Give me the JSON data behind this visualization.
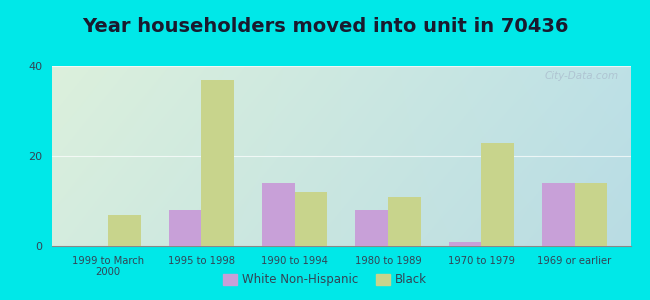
{
  "title": "Year householders moved into unit in 70436",
  "categories": [
    "1999 to March\n2000",
    "1995 to 1998",
    "1990 to 1994",
    "1980 to 1989",
    "1970 to 1979",
    "1969 or earlier"
  ],
  "white_non_hispanic": [
    0,
    8,
    14,
    8,
    1,
    14
  ],
  "black": [
    7,
    37,
    12,
    11,
    23,
    14
  ],
  "white_color": "#c8a0d8",
  "black_color": "#c8d48c",
  "background_outer": "#00e8e8",
  "ylim": [
    0,
    40
  ],
  "yticks": [
    0,
    20,
    40
  ],
  "title_fontsize": 14,
  "title_color": "#1a1a2e",
  "legend_labels": [
    "White Non-Hispanic",
    "Black"
  ],
  "watermark": "City-Data.com",
  "tick_color": "#334455",
  "bar_width": 0.35
}
